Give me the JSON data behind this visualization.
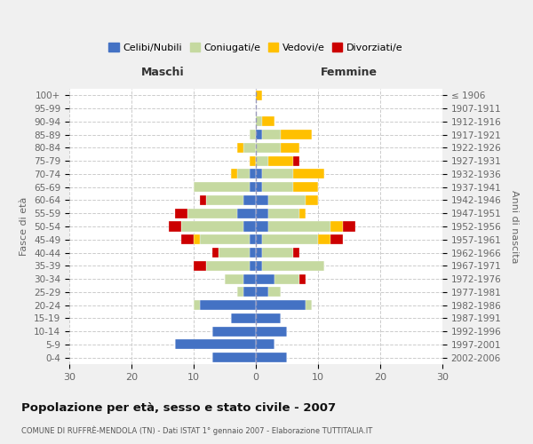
{
  "age_groups": [
    "0-4",
    "5-9",
    "10-14",
    "15-19",
    "20-24",
    "25-29",
    "30-34",
    "35-39",
    "40-44",
    "45-49",
    "50-54",
    "55-59",
    "60-64",
    "65-69",
    "70-74",
    "75-79",
    "80-84",
    "85-89",
    "90-94",
    "95-99",
    "100+"
  ],
  "birth_years": [
    "2002-2006",
    "1997-2001",
    "1992-1996",
    "1987-1991",
    "1982-1986",
    "1977-1981",
    "1972-1976",
    "1967-1971",
    "1962-1966",
    "1957-1961",
    "1952-1956",
    "1947-1951",
    "1942-1946",
    "1937-1941",
    "1932-1936",
    "1927-1931",
    "1922-1926",
    "1917-1921",
    "1912-1916",
    "1907-1911",
    "≤ 1906"
  ],
  "colors": {
    "celibi": "#4472c4",
    "coniugati": "#c5d9a0",
    "vedovi": "#ffc000",
    "divorziati": "#cc0000"
  },
  "maschi": {
    "celibi": [
      7,
      13,
      7,
      4,
      9,
      2,
      2,
      1,
      1,
      1,
      2,
      3,
      2,
      1,
      1,
      0,
      0,
      0,
      0,
      0,
      0
    ],
    "coniugati": [
      0,
      0,
      0,
      0,
      1,
      1,
      3,
      7,
      5,
      8,
      10,
      8,
      6,
      9,
      2,
      0,
      2,
      1,
      0,
      0,
      0
    ],
    "vedovi": [
      0,
      0,
      0,
      0,
      0,
      0,
      0,
      0,
      0,
      1,
      0,
      0,
      0,
      0,
      1,
      1,
      1,
      0,
      0,
      0,
      0
    ],
    "divorziati": [
      0,
      0,
      0,
      0,
      0,
      0,
      0,
      2,
      1,
      2,
      2,
      2,
      1,
      0,
      0,
      0,
      0,
      0,
      0,
      0,
      0
    ]
  },
  "femmine": {
    "celibi": [
      5,
      3,
      5,
      4,
      8,
      2,
      3,
      1,
      1,
      1,
      2,
      2,
      2,
      1,
      1,
      0,
      0,
      1,
      0,
      0,
      0
    ],
    "coniugati": [
      0,
      0,
      0,
      0,
      1,
      2,
      4,
      10,
      5,
      9,
      10,
      5,
      6,
      5,
      5,
      2,
      4,
      3,
      1,
      0,
      0
    ],
    "vedovi": [
      0,
      0,
      0,
      0,
      0,
      0,
      0,
      0,
      0,
      2,
      2,
      1,
      2,
      4,
      5,
      4,
      3,
      5,
      2,
      0,
      1
    ],
    "divorziati": [
      0,
      0,
      0,
      0,
      0,
      0,
      1,
      0,
      1,
      2,
      2,
      0,
      0,
      0,
      0,
      1,
      0,
      0,
      0,
      0,
      0
    ]
  },
  "xlim": [
    -30,
    30
  ],
  "xticks": [
    -30,
    -20,
    -10,
    0,
    10,
    20,
    30
  ],
  "xticklabels": [
    "30",
    "20",
    "10",
    "0",
    "10",
    "20",
    "30"
  ],
  "title": "Popolazione per età, sesso e stato civile - 2007",
  "subtitle": "COMUNE DI RUFFRÈ-MENDOLA (TN) - Dati ISTAT 1° gennaio 2007 - Elaborazione TUTTITALIA.IT",
  "ylabel": "Fasce di età",
  "ylabel_right": "Anni di nascita",
  "label_maschi": "Maschi",
  "label_femmine": "Femmine",
  "legend_labels": [
    "Celibi/Nubili",
    "Coniugati/e",
    "Vedovi/e",
    "Divorziati/e"
  ],
  "background_color": "#f0f0f0",
  "plot_background": "#ffffff"
}
